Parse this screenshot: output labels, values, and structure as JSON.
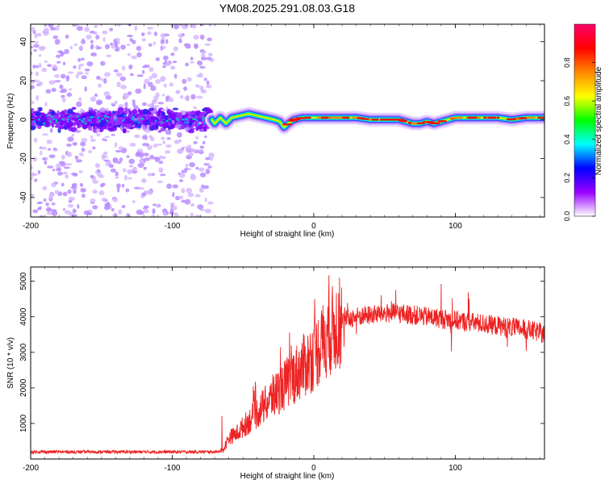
{
  "title": "YM08.2025.291.08.03.G18",
  "chart_data": [
    {
      "type": "heatmap",
      "name": "spectrogram",
      "xlabel": "Height of straight line (km)",
      "ylabel": "Frequency (Hz)",
      "xlim": [
        -200,
        163
      ],
      "ylim": [
        -50,
        49
      ],
      "xticks": [
        -200,
        -100,
        0,
        100
      ],
      "yticks": [
        -40,
        -20,
        0,
        20,
        40
      ],
      "xtick_labels": [
        "-200",
        "-100",
        "0",
        "100"
      ],
      "ytick_labels": [
        "-40",
        "-20",
        "0",
        "20",
        "40"
      ],
      "noise_region_end_km": -72,
      "coherent_track": {
        "x": [
          -72,
          -70,
          -66,
          -62,
          -58,
          -52,
          -46,
          -40,
          -34,
          -28,
          -24,
          -21,
          -18,
          -14,
          -8,
          0,
          10,
          20,
          30,
          40,
          50,
          60,
          65,
          70,
          75,
          80,
          85,
          90,
          95,
          100,
          110,
          120,
          130,
          140,
          150,
          160,
          163
        ],
        "y": [
          0,
          -2,
          1,
          -2,
          1,
          2,
          3,
          2,
          1,
          0,
          -1,
          -4,
          -2,
          0,
          1,
          1,
          1,
          1,
          1,
          0,
          0,
          0,
          -1,
          -2,
          -2,
          -1,
          -2,
          -1,
          0,
          1,
          1,
          1,
          1,
          0,
          1,
          1,
          1
        ]
      },
      "colorbar": {
        "label": "Normalized spectral amplitude",
        "range": [
          0,
          1
        ],
        "ticks": [
          0.0,
          0.2,
          0.4,
          0.6,
          0.8
        ],
        "tick_labels": [
          "0.0",
          "0.2",
          "0.4",
          "0.6",
          "0.8"
        ],
        "colors": [
          "#ffffff",
          "#9900ff",
          "#0000ff",
          "#00ffff",
          "#00ff00",
          "#ffff00",
          "#ff8800",
          "#ff0000",
          "#ff0066"
        ]
      }
    },
    {
      "type": "line",
      "name": "snr",
      "xlabel": "Height of straight line (km)",
      "ylabel": "SNR (10 * v/v)",
      "xlim": [
        -200,
        163
      ],
      "ylim": [
        0,
        5400
      ],
      "xticks": [
        -200,
        -100,
        0,
        100
      ],
      "yticks": [
        1000,
        2000,
        3000,
        4000,
        5000
      ],
      "xtick_labels": [
        "-200",
        "-100",
        "0",
        "100"
      ],
      "ytick_labels": [
        "1000",
        "2000",
        "3000",
        "4000",
        "5000"
      ],
      "color": "#ee2222",
      "series": [
        {
          "name": "SNR",
          "x": [
            -200,
            -180,
            -160,
            -140,
            -120,
            -100,
            -80,
            -70,
            -64,
            -60,
            -55,
            -50,
            -45,
            -40,
            -35,
            -30,
            -25,
            -20,
            -15,
            -10,
            -5,
            0,
            5,
            10,
            15,
            20,
            25,
            30,
            40,
            50,
            60,
            70,
            80,
            90,
            100,
            110,
            120,
            130,
            140,
            150,
            160,
            163
          ],
          "values": [
            200,
            200,
            200,
            200,
            200,
            200,
            200,
            200,
            250,
            600,
            700,
            900,
            1100,
            1300,
            1500,
            1700,
            1900,
            2100,
            2300,
            2500,
            2700,
            2900,
            3200,
            3500,
            3700,
            3850,
            3950,
            4000,
            4050,
            4100,
            4100,
            4050,
            4000,
            3950,
            3900,
            3850,
            3800,
            3750,
            3700,
            3650,
            3550,
            3500
          ]
        }
      ]
    }
  ]
}
